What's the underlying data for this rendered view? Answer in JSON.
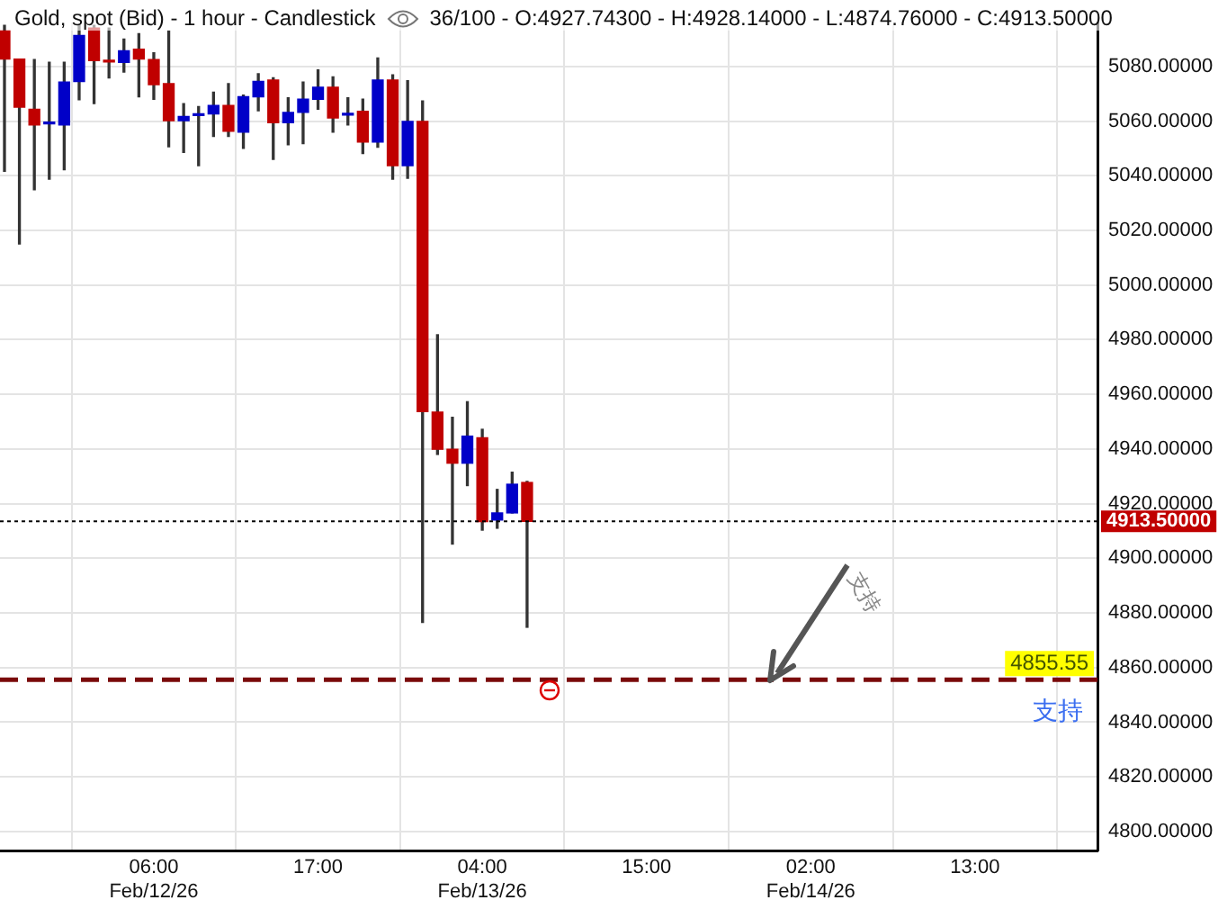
{
  "chart_data": {
    "type": "candlestick",
    "title": "Gold, spot (Bid) - 1 hour - Candlestick",
    "subtitle": "36/100 - O:4927.74300 - H:4928.14000 - L:4874.76000 - C:4913.50000",
    "x": [
      "--02-11T20:00",
      "--02-11T21:00",
      "--02-11T22:00",
      "--02-11T23:00",
      "--02-12T00:00",
      "--02-12T01:00",
      "--02-12T02:00",
      "--02-12T03:00",
      "--02-12T04:00",
      "--02-12T05:00",
      "--02-12T06:00",
      "--02-12T07:00",
      "--02-12T08:00",
      "--02-12T09:00",
      "--02-12T10:00",
      "--02-12T11:00",
      "--02-12T12:00",
      "--02-12T13:00",
      "--02-12T14:00",
      "--02-12T15:00",
      "--02-12T16:00",
      "--02-12T17:00",
      "--02-12T18:00",
      "--02-12T19:00",
      "--02-12T20:00",
      "--02-12T21:00",
      "--02-12T22:00",
      "--02-12T23:00",
      "--02-13T00:00",
      "--02-13T01:00",
      "--02-13T02:00",
      "--02-13T03:00",
      "--02-13T04:00",
      "--02-13T05:00",
      "--02-13T06:00",
      "--02-13T07:00"
    ],
    "ohlc": [
      [
        5093,
        5095,
        5041.6,
        5082.7
      ],
      [
        5082.7,
        5082.7,
        5015,
        5065.1
      ],
      [
        5064.3,
        5082.5,
        5034.9,
        5058.6
      ],
      [
        5059,
        5081.5,
        5038.7,
        5059.2
      ],
      [
        5058.6,
        5081.5,
        5042.2,
        5074.3
      ],
      [
        5074.5,
        5095,
        5067.8,
        5091.3
      ],
      [
        5094,
        5095,
        5066.4,
        5082.1
      ],
      [
        5081.9,
        5094,
        5075.8,
        5081.6
      ],
      [
        5081.5,
        5090,
        5077.9,
        5085.7
      ],
      [
        5086.3,
        5092,
        5068.9,
        5082.7
      ],
      [
        5082.5,
        5085,
        5068,
        5073.3
      ],
      [
        5073.7,
        5093,
        5050.6,
        5060.1
      ],
      [
        5060.1,
        5066.4,
        5048.5,
        5061.7
      ],
      [
        5062,
        5065.3,
        5043.7,
        5062.4
      ],
      [
        5062.6,
        5070.6,
        5054.4,
        5065.7
      ],
      [
        5065.7,
        5073.7,
        5054.4,
        5056.3
      ],
      [
        5055.9,
        5069.5,
        5050,
        5068.9
      ],
      [
        5068.9,
        5077.3,
        5063.8,
        5074.5
      ],
      [
        5075,
        5075.8,
        5046,
        5059.4
      ],
      [
        5059.4,
        5068.5,
        5051.3,
        5063.2
      ],
      [
        5063.2,
        5074.3,
        5051.7,
        5068
      ],
      [
        5068,
        5078.7,
        5064.3,
        5072.4
      ],
      [
        5072.4,
        5076.2,
        5055.9,
        5061.1
      ],
      [
        5062.2,
        5068.5,
        5058.6,
        5062.8
      ],
      [
        5063.6,
        5068,
        5048.1,
        5052.3
      ],
      [
        5052.3,
        5083.1,
        5050.4,
        5075
      ],
      [
        5075,
        5076.9,
        5038.7,
        5043.7
      ],
      [
        5043.7,
        5074.8,
        5039.1,
        5059.9
      ],
      [
        5059.9,
        5067.4,
        4876.5,
        4953.7
      ],
      [
        4953.5,
        4981.8,
        4938,
        4939.9
      ],
      [
        4939.9,
        4951.6,
        4905.2,
        4934.8
      ],
      [
        4934.8,
        4957.3,
        4926.6,
        4944.7
      ],
      [
        4944.1,
        4947.2,
        4910.3,
        4913.4
      ],
      [
        4914,
        4925.2,
        4911,
        4916.6
      ],
      [
        4916.6,
        4931.5,
        4916.6,
        4927.1
      ],
      [
        4927.743,
        4928.14,
        4874.76,
        4913.5
      ]
    ],
    "colors": [
      "#c00000",
      "#c00000",
      "#c00000",
      "#0000c8",
      "#0000c8",
      "#0000c8",
      "#c00000",
      "#c00000",
      "#0000c8",
      "#c00000",
      "#c00000",
      "#c00000",
      "#0000c8",
      "#0000c8",
      "#0000c8",
      "#c00000",
      "#0000c8",
      "#0000c8",
      "#c00000",
      "#0000c8",
      "#0000c8",
      "#0000c8",
      "#c00000",
      "#0000c8",
      "#c00000",
      "#0000c8",
      "#c00000",
      "#0000c8",
      "#c00000",
      "#c00000",
      "#c00000",
      "#0000c8",
      "#c00000",
      "#0000c8",
      "#0000c8",
      "#c00000"
    ],
    "xlim": [
      "--02-11T19:42",
      "--02-14T21:12"
    ],
    "xticks": [
      {
        "value": "--02-12T06:00",
        "label": "06:00\nFeb/12/26"
      },
      {
        "value": "--02-12T17:00",
        "label": "17:00"
      },
      {
        "value": "--02-13T04:00",
        "label": "04:00\nFeb/13/26"
      },
      {
        "value": "--02-13T15:00",
        "label": "15:00"
      },
      {
        "value": "--02-14T02:00",
        "label": "02:00\nFeb/14/26"
      },
      {
        "value": "--02-14T13:00",
        "label": "13:00"
      }
    ],
    "ylim": [
      4793,
      5096
    ],
    "yticks": [
      {
        "value": 4800,
        "label": "4800.00000"
      },
      {
        "value": 4820,
        "label": "4820.00000"
      },
      {
        "value": 4840,
        "label": "4840.00000"
      },
      {
        "value": 4860,
        "label": "4860.00000"
      },
      {
        "value": 4880,
        "label": "4880.00000"
      },
      {
        "value": 4900,
        "label": "4900.00000"
      },
      {
        "value": 4920,
        "label": "4920.00000"
      },
      {
        "value": 4940,
        "label": "4940.00000"
      },
      {
        "value": 4960,
        "label": "4960.00000"
      },
      {
        "value": 4980,
        "label": "4980.00000"
      },
      {
        "value": 5000,
        "label": "5000.00000"
      },
      {
        "value": 5020,
        "label": "5020.00000"
      },
      {
        "value": 5040,
        "label": "5040.00000"
      },
      {
        "value": 5060,
        "label": "5060.00000"
      },
      {
        "value": 5080,
        "label": "5080.00000"
      }
    ],
    "ref_lines": [
      {
        "axis": "y",
        "value": 4913.5,
        "label": "4913.50000",
        "color": "#000000",
        "line_style": "dotted"
      },
      {
        "axis": "y",
        "value": 4855.55,
        "label": "4855.55",
        "color": "#7a0a0a",
        "line_style": "dashed"
      }
    ],
    "annotations": [
      "支持",
      {
        "text": "支持",
        "x": "--02-13T23:15",
        "y": 4855.55
      }
    ],
    "grid": true,
    "legend": false
  }
}
